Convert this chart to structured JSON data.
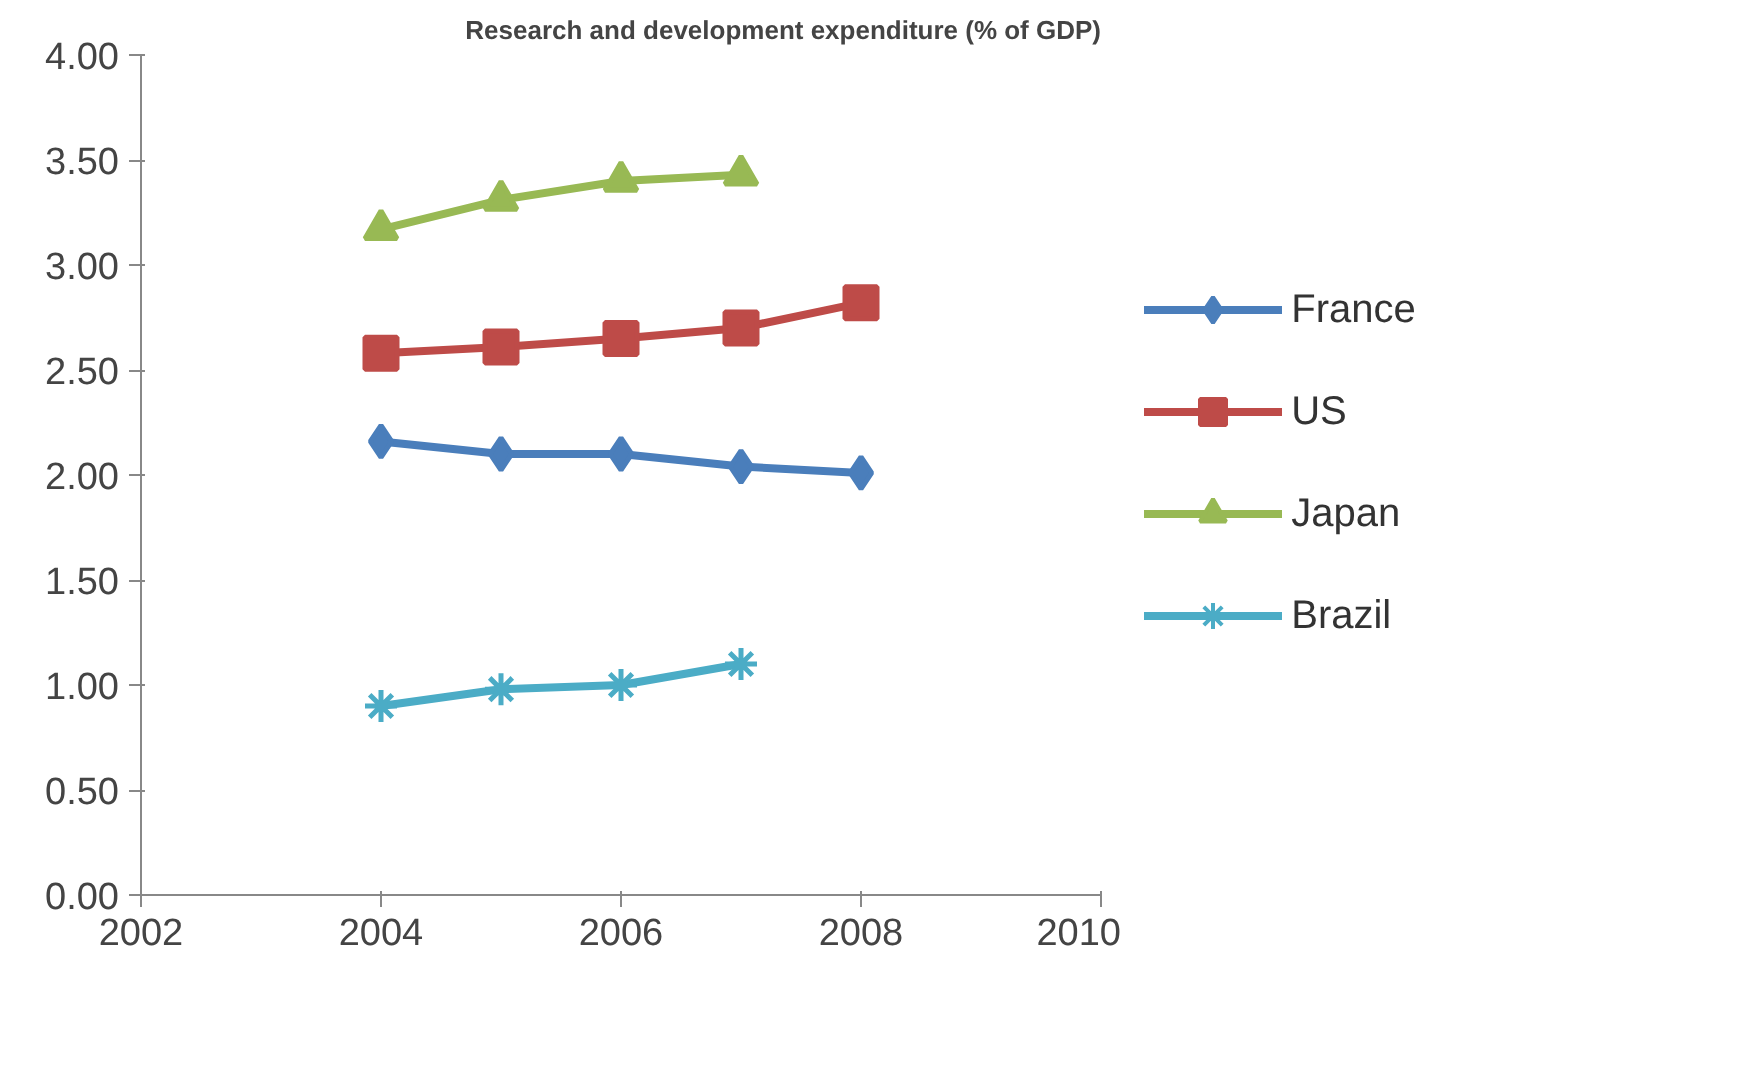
{
  "chart_data": {
    "type": "line",
    "title": "Research and development expenditure (% of GDP)",
    "x": [
      2004,
      2005,
      2006,
      2007,
      2008
    ],
    "series": [
      {
        "name": "France",
        "color": "#4a7ebb",
        "marker": "diamond",
        "values": [
          2.16,
          2.1,
          2.1,
          2.04,
          2.01
        ]
      },
      {
        "name": "US",
        "color": "#be4b48",
        "marker": "square",
        "values": [
          2.58,
          2.61,
          2.65,
          2.7,
          2.82
        ]
      },
      {
        "name": "Japan",
        "color": "#98b954",
        "marker": "triangle",
        "values": [
          3.17,
          3.31,
          3.4,
          3.43,
          null
        ]
      },
      {
        "name": "Brazil",
        "color": "#4bacc6",
        "marker": "cross",
        "values": [
          0.9,
          0.98,
          1.0,
          1.1,
          null
        ]
      }
    ],
    "xlim": [
      2002,
      2010
    ],
    "xticks": [
      2002,
      2004,
      2006,
      2008,
      2010
    ],
    "ylim": [
      0,
      4
    ],
    "yticks": [
      {
        "value": 0,
        "label": "0.00"
      },
      {
        "value": 0.5,
        "label": "0.50"
      },
      {
        "value": 1,
        "label": "1.00"
      },
      {
        "value": 1.5,
        "label": "1.50"
      },
      {
        "value": 2,
        "label": "2.00"
      },
      {
        "value": 2.5,
        "label": "2.50"
      },
      {
        "value": 3,
        "label": "3.00"
      },
      {
        "value": 3.5,
        "label": "3.50"
      },
      {
        "value": 4,
        "label": "4.00"
      }
    ],
    "grid": false,
    "legend": "right",
    "line_style": "solid"
  }
}
